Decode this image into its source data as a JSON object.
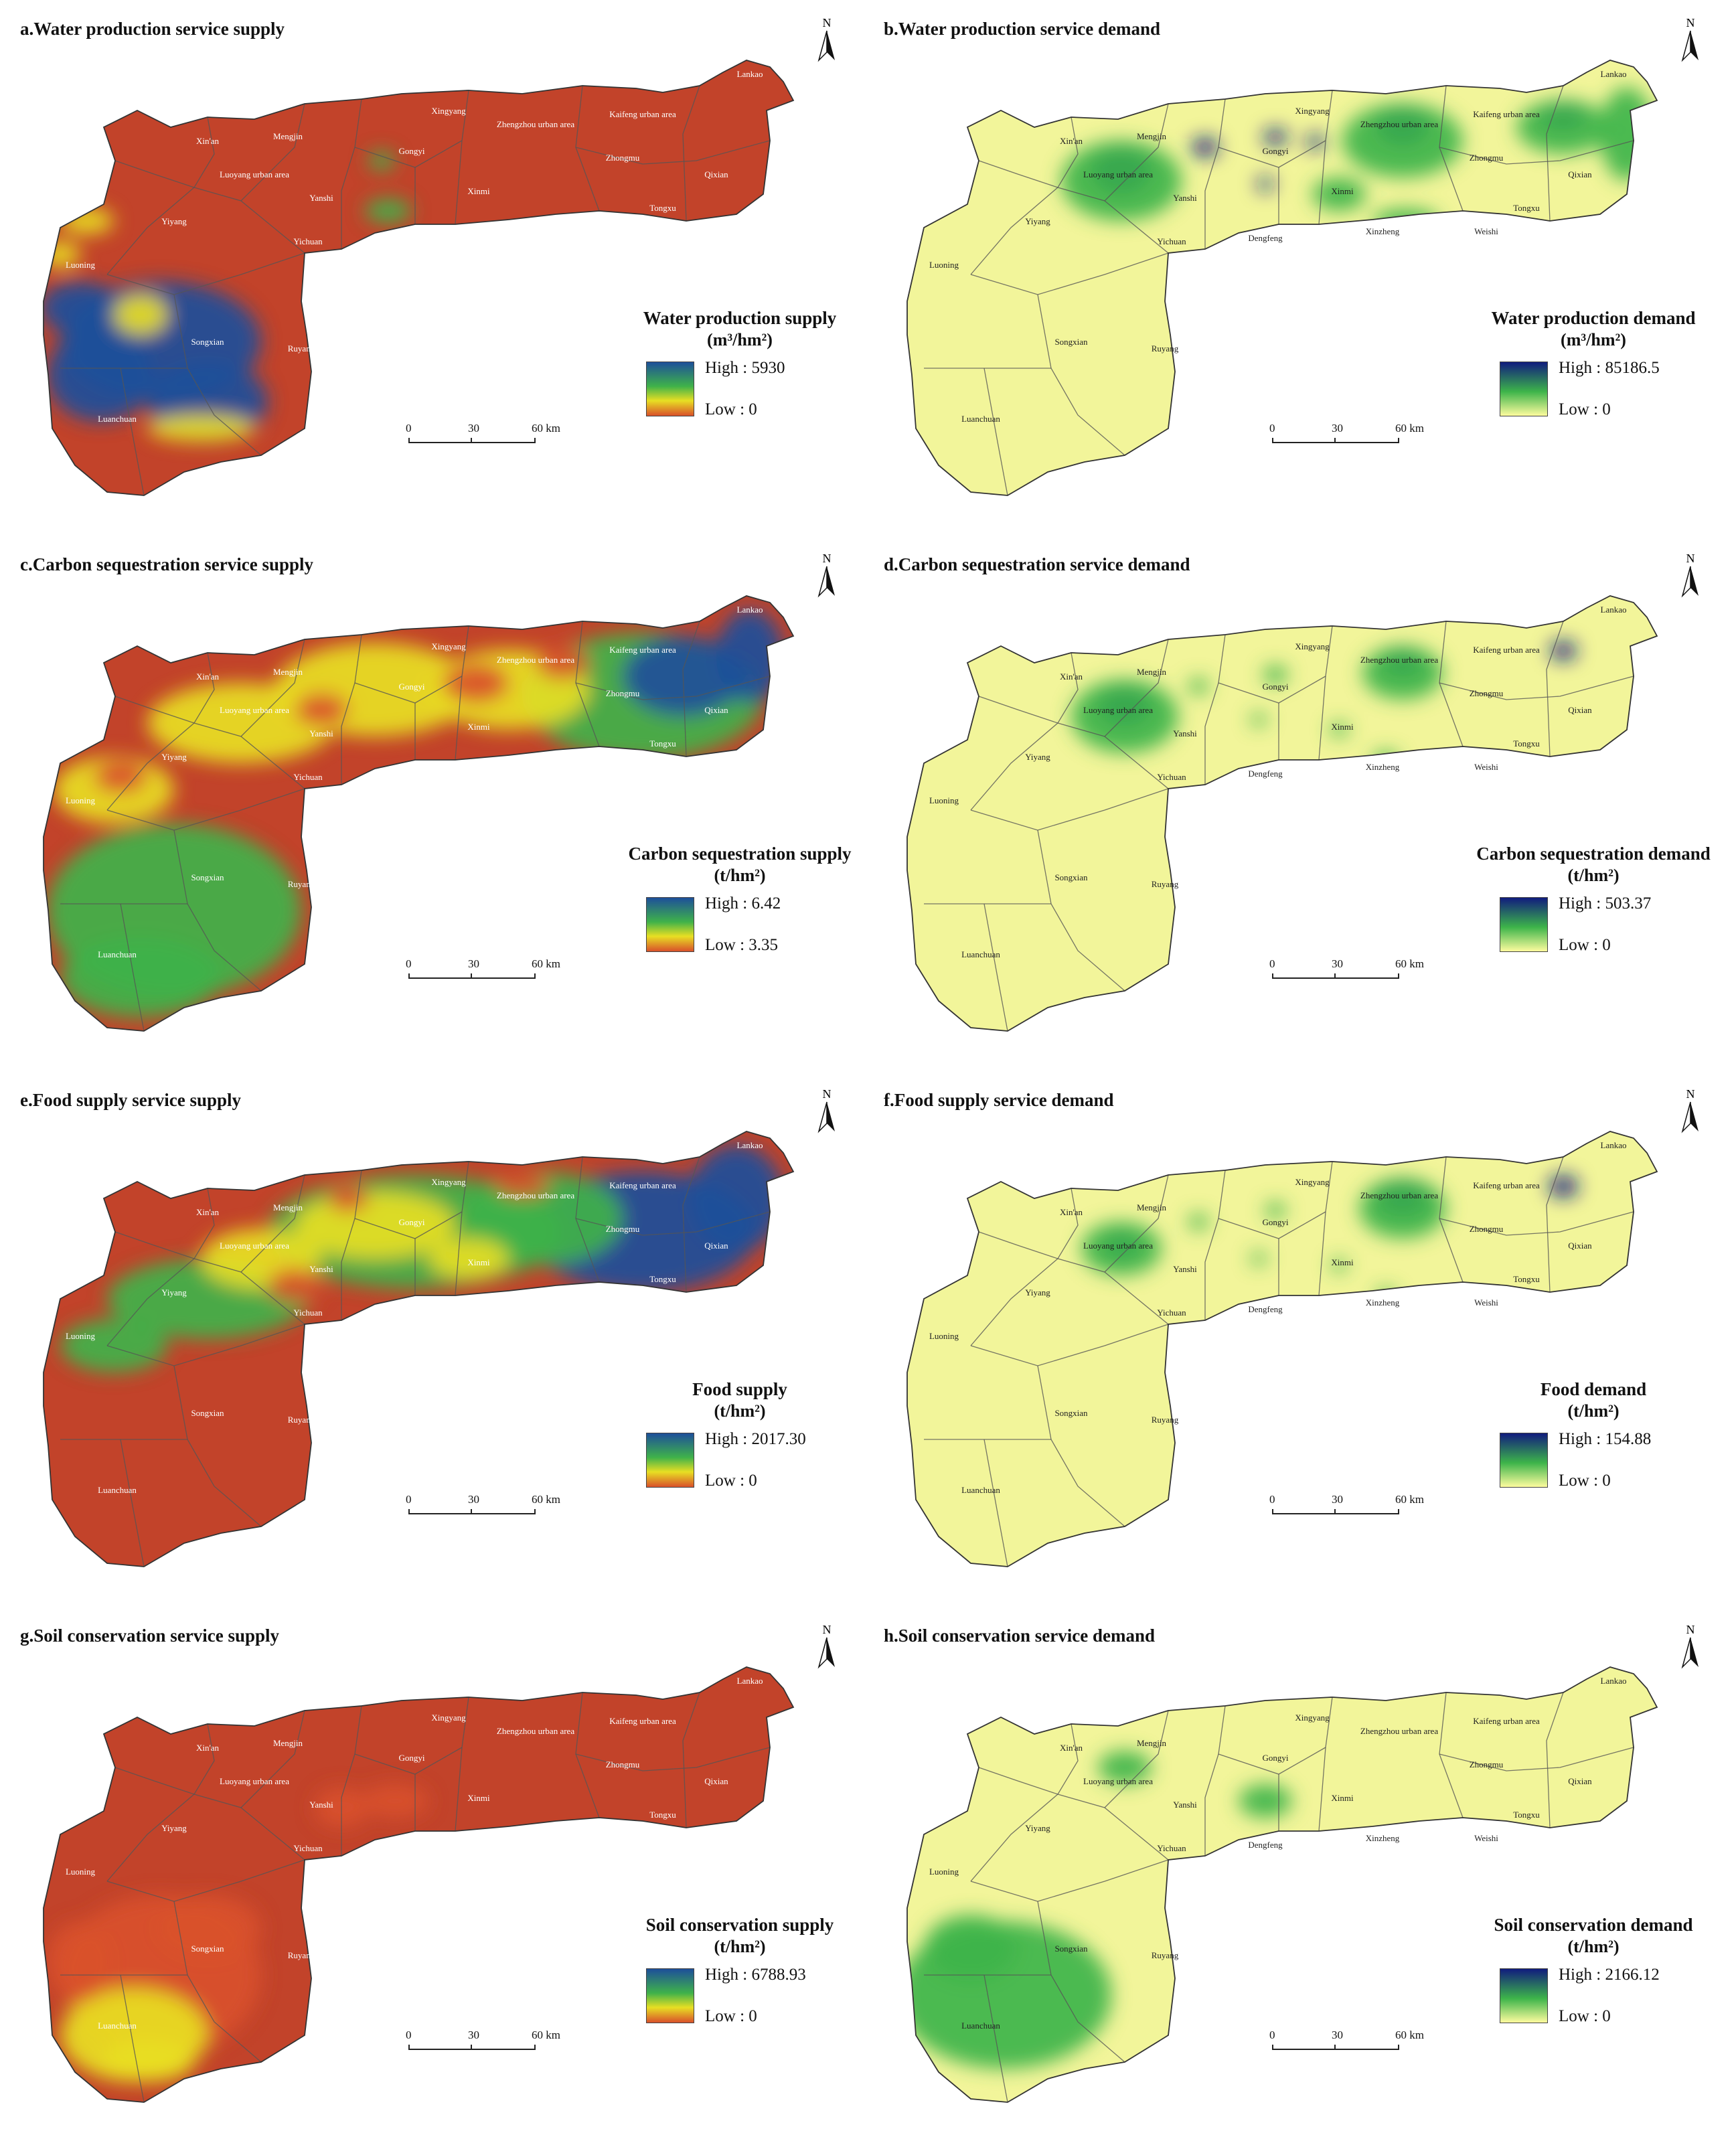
{
  "colors": {
    "supply_high": "#1d4f9a",
    "supply_mid": "#3fb24a",
    "supply_low_yellow": "#e8df23",
    "supply_low": "#d9502a",
    "supply_base": "#c2432a",
    "demand_high": "#101c7e",
    "demand_mid": "#3db44a",
    "demand_low": "#fdfc9e",
    "demand_base": "#f2f59a",
    "boundary": "#555555"
  },
  "north_label": "N",
  "scalebar": {
    "ticks": [
      "0",
      "30",
      "60 km"
    ]
  },
  "panels": [
    {
      "id": "a",
      "title": "a.Water production service supply",
      "kind": "supply",
      "pattern": "water",
      "legend_title": "Water production supply",
      "legend_unit": "(m³/hm²)",
      "high_label": "High : 5930",
      "low_label": "Low : 0"
    },
    {
      "id": "b",
      "title": "b.Water production service  demand",
      "kind": "demand",
      "pattern": "water",
      "legend_title": "Water production  demand",
      "legend_unit": "(m³/hm²)",
      "high_label": "High : 85186.5",
      "low_label": "Low : 0"
    },
    {
      "id": "c",
      "title": "c.Carbon sequestration service supply",
      "kind": "supply",
      "pattern": "carbon",
      "legend_title": "Carbon sequestration supply",
      "legend_unit": "(t/hm²)",
      "high_label": "High : 6.42",
      "low_label": "Low : 3.35"
    },
    {
      "id": "d",
      "title": "d.Carbon sequestration service demand",
      "kind": "demand",
      "pattern": "carbon",
      "legend_title": "Carbon sequestration demand",
      "legend_unit": "(t/hm²)",
      "high_label": "High : 503.37",
      "low_label": "Low : 0"
    },
    {
      "id": "e",
      "title": "e.Food supply service supply",
      "kind": "supply",
      "pattern": "food",
      "legend_title": "Food supply",
      "legend_unit": "(t/hm²)",
      "high_label": "High : 2017.30",
      "low_label": "Low : 0"
    },
    {
      "id": "f",
      "title": "f.Food supply service demand",
      "kind": "demand",
      "pattern": "food",
      "legend_title": "Food demand",
      "legend_unit": "(t/hm²)",
      "high_label": "High : 154.88",
      "low_label": "Low : 0"
    },
    {
      "id": "g",
      "title": "g.Soil conservation service supply",
      "kind": "supply",
      "pattern": "soil",
      "legend_title": "Soil conservation supply",
      "legend_unit": "(t/hm²)",
      "high_label": "High : 6788.93",
      "low_label": "Low : 0"
    },
    {
      "id": "h",
      "title": "h.Soil conservation service demand",
      "kind": "demand",
      "pattern": "soil",
      "legend_title": "Soil conservation demand",
      "legend_unit": "(t/hm²)",
      "high_label": "High : 2166.12",
      "low_label": "Low : 0"
    }
  ],
  "places": [
    "Lankao",
    "Xingyang",
    "Kaifeng urban area",
    "Xin'an",
    "Mengjin",
    "Zhengzhou urban area",
    "Zhongmu",
    "Gongyi",
    "Luoyang urban area",
    "Yanshi",
    "Xinmi",
    "Qixian",
    "Tongxu",
    "Yiyang",
    "Yichuan",
    "Dengfeng",
    "Xinzheng",
    "Weishi",
    "Luoning",
    "Songxian",
    "Ruyang",
    "Luanchuan"
  ]
}
